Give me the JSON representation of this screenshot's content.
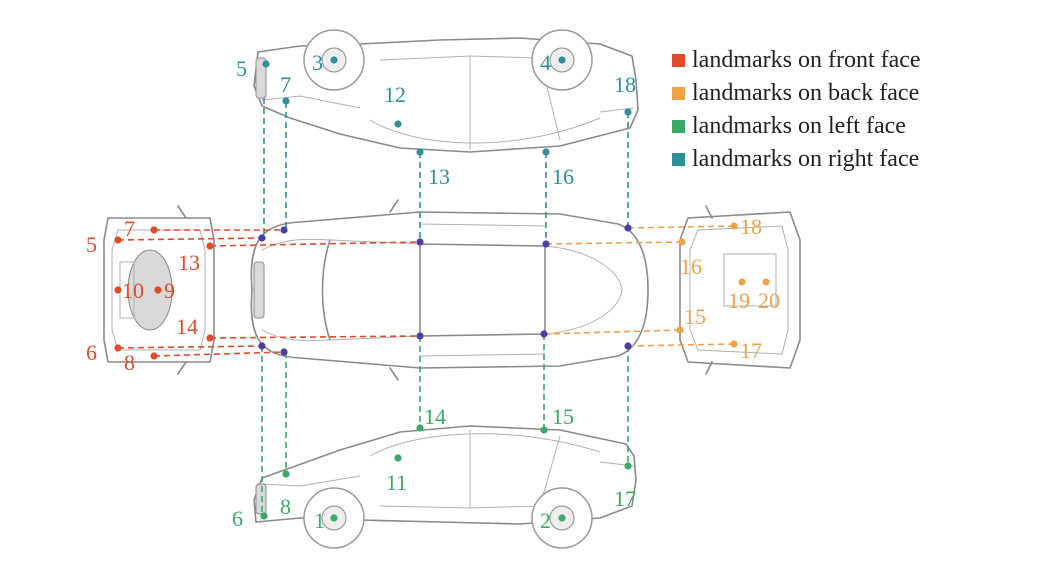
{
  "legend": {
    "items": [
      {
        "label": "landmarks on front face",
        "color": "#e04b2c"
      },
      {
        "label": "landmarks on back face",
        "color": "#f0a24a"
      },
      {
        "label": "landmarks on left face",
        "color": "#3aa866"
      },
      {
        "label": "landmarks on right face",
        "color": "#2e8f9a"
      }
    ]
  },
  "colors": {
    "front": "#e04b2c",
    "back": "#f0a24a",
    "left": "#3aa866",
    "right": "#2e8f9a",
    "top": "#4a3fa8"
  },
  "views": {
    "right": {
      "landmarks": [
        "3",
        "4",
        "5",
        "7",
        "12",
        "13",
        "16",
        "18"
      ]
    },
    "front": {
      "landmarks": [
        "5",
        "6",
        "7",
        "8",
        "9",
        "10",
        "13",
        "14"
      ]
    },
    "back": {
      "landmarks": [
        "15",
        "16",
        "17",
        "18",
        "19",
        "20"
      ]
    },
    "left": {
      "landmarks": [
        "1",
        "2",
        "6",
        "8",
        "11",
        "14",
        "15",
        "17"
      ]
    }
  }
}
